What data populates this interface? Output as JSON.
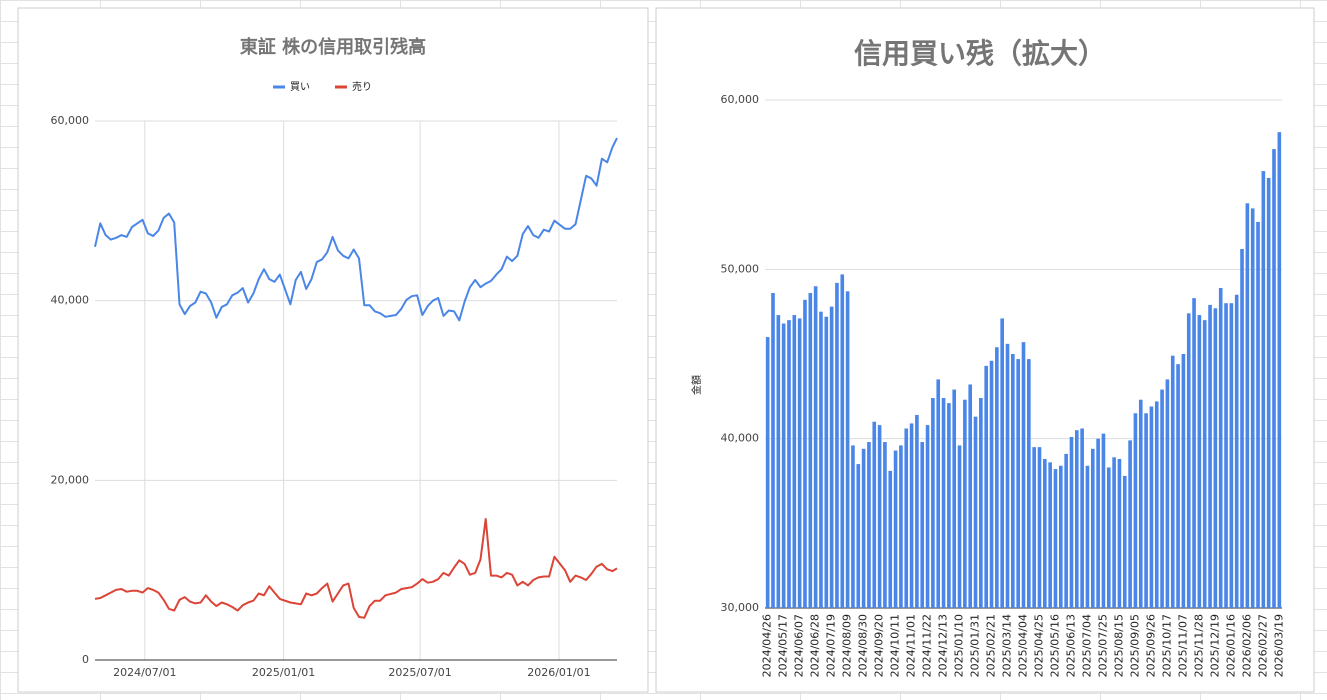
{
  "chart_data": [
    {
      "type": "line",
      "title": "東証 株の信用取引残高",
      "x": [
        "2024/04/26",
        "2024/05/03",
        "2024/05/10",
        "2024/05/17",
        "2024/05/24",
        "2024/05/31",
        "2024/06/07",
        "2024/06/14",
        "2024/06/21",
        "2024/06/28",
        "2024/07/05",
        "2024/07/12",
        "2024/07/19",
        "2024/07/26",
        "2024/08/02",
        "2024/08/09",
        "2024/08/16",
        "2024/08/23",
        "2024/08/30",
        "2024/09/06",
        "2024/09/13",
        "2024/09/20",
        "2024/09/27",
        "2024/10/04",
        "2024/10/11",
        "2024/10/18",
        "2024/10/25",
        "2024/11/01",
        "2024/11/08",
        "2024/11/15",
        "2024/11/22",
        "2024/11/29",
        "2024/12/06",
        "2024/12/13",
        "2024/12/20",
        "2024/12/27",
        "2025/01/10",
        "2025/01/17",
        "2025/01/24",
        "2025/01/31",
        "2025/02/07",
        "2025/02/14",
        "2025/02/21",
        "2025/02/28",
        "2025/03/07",
        "2025/03/14",
        "2025/03/21",
        "2025/03/28",
        "2025/04/04",
        "2025/04/11",
        "2025/04/18",
        "2025/04/25",
        "2025/05/02",
        "2025/05/09",
        "2025/05/16",
        "2025/05/30",
        "2025/06/06",
        "2025/06/13",
        "2025/06/20",
        "2025/06/27",
        "2025/07/04",
        "2025/07/11",
        "2025/07/18",
        "2025/07/25",
        "2025/08/01",
        "2025/08/08",
        "2025/08/15",
        "2025/08/22",
        "2025/08/29",
        "2025/09/05",
        "2025/09/12",
        "2025/09/19",
        "2025/09/26",
        "2025/10/03",
        "2025/10/10",
        "2025/10/17",
        "2025/10/24",
        "2025/10/31",
        "2025/11/07",
        "2025/11/14",
        "2025/11/21",
        "2025/11/28",
        "2025/12/05",
        "2025/12/12",
        "2025/12/19",
        "2025/12/26",
        "2026/01/09",
        "2026/01/16",
        "2026/01/23",
        "2026/01/30",
        "2026/02/06",
        "2026/02/13",
        "2026/02/20",
        "2026/02/27",
        "2026/03/06",
        "2026/03/13",
        "2026/03/19"
      ],
      "series": [
        {
          "name": "買い",
          "color": "#4a86e8",
          "values": [
            46000,
            48600,
            47300,
            46800,
            47000,
            47300,
            47100,
            48200,
            48600,
            49000,
            47500,
            47200,
            47800,
            49200,
            49700,
            48700,
            39600,
            38500,
            39400,
            39800,
            41000,
            40800,
            39800,
            38100,
            39300,
            39600,
            40600,
            40900,
            41400,
            39800,
            40800,
            42400,
            43500,
            42400,
            42100,
            42900,
            39600,
            42300,
            43200,
            41300,
            42400,
            44300,
            44600,
            45400,
            47100,
            45600,
            45000,
            44700,
            45700,
            44700,
            39500,
            39500,
            38800,
            38600,
            38200,
            38400,
            39100,
            40100,
            40500,
            40600,
            38400,
            39400,
            40000,
            40300,
            38300,
            38900,
            38800,
            37800,
            39900,
            41500,
            42300,
            41500,
            41900,
            42200,
            42900,
            43500,
            44900,
            44400,
            45000,
            47400,
            48300,
            47300,
            47000,
            47900,
            47700,
            48900,
            48000,
            48000,
            48500,
            51200,
            53900,
            53600,
            52800,
            55800,
            55400,
            57100,
            58100
          ]
        },
        {
          "name": "売り",
          "color": "#db4437",
          "values": [
            6800,
            6900,
            7200,
            7500,
            7800,
            7900,
            7600,
            7700,
            7700,
            7500,
            8000,
            7800,
            7500,
            6700,
            5700,
            5500,
            6700,
            7000,
            6500,
            6300,
            6400,
            7200,
            6500,
            6000,
            6400,
            6200,
            5900,
            5500,
            6100,
            6400,
            6600,
            7400,
            7200,
            8200,
            7500,
            6800,
            6400,
            6300,
            6200,
            7400,
            7200,
            7400,
            8000,
            8500,
            6500,
            7400,
            8300,
            8500,
            5800,
            4800,
            4700,
            6000,
            6600,
            6600,
            7200,
            7500,
            7900,
            8000,
            8100,
            8500,
            9000,
            8600,
            8700,
            9000,
            9700,
            9400,
            10300,
            11100,
            10700,
            9500,
            9700,
            11200,
            15700,
            9400,
            9400,
            9200,
            9700,
            9500,
            8300,
            8700,
            8300,
            8900,
            9200,
            9300,
            9300,
            11500,
            10000,
            8700,
            9400,
            9200,
            8900,
            9600,
            10400,
            10700,
            10100,
            9900,
            10200
          ]
        }
      ],
      "xlim": [
        "2024/04/26",
        "2026/03/19"
      ],
      "xticks": [
        "2024/07/01",
        "2025/01/01",
        "2025/07/01",
        "2026/01/01"
      ],
      "ylim": [
        0,
        60000
      ],
      "yticks": [
        0,
        {
          "value": 20000,
          "label": "20,000"
        },
        {
          "value": 40000,
          "label": "40,000"
        },
        {
          "value": 60000,
          "label": "60,000"
        }
      ],
      "grid": true,
      "legend": "top"
    },
    {
      "type": "bar",
      "title": "信用買い残（拡大）",
      "y_label": "金額",
      "color": "#4a86e8",
      "categories": [
        "2024/04/26",
        null,
        null,
        "2024/05/17",
        null,
        null,
        "2024/06/07",
        null,
        null,
        "2024/06/28",
        null,
        null,
        "2024/07/19",
        null,
        null,
        "2024/08/09",
        null,
        null,
        "2024/08/30",
        null,
        null,
        "2024/09/20",
        null,
        null,
        "2024/10/11",
        null,
        null,
        "2024/11/01",
        null,
        null,
        "2024/11/22",
        null,
        null,
        "2024/12/13",
        null,
        null,
        "2025/01/10",
        null,
        null,
        "2025/01/31",
        null,
        null,
        "2025/02/21",
        null,
        null,
        "2025/03/14",
        null,
        null,
        "2025/04/04",
        null,
        null,
        "2025/04/25",
        null,
        null,
        "2025/05/16",
        null,
        null,
        "2025/06/13",
        null,
        null,
        "2025/07/04",
        null,
        null,
        "2025/07/25",
        null,
        null,
        "2025/08/15",
        null,
        null,
        "2025/09/05",
        null,
        null,
        "2025/09/26",
        null,
        null,
        "2025/10/17",
        null,
        null,
        "2025/11/07",
        null,
        null,
        "2025/11/28",
        null,
        null,
        "2025/12/19",
        null,
        null,
        "2026/01/16",
        null,
        null,
        "2026/02/06",
        null,
        null,
        "2026/02/27",
        null,
        null,
        "2026/03/19"
      ],
      "values": [
        46000,
        48600,
        47300,
        46800,
        47000,
        47300,
        47100,
        48200,
        48600,
        49000,
        47500,
        47200,
        47800,
        49200,
        49700,
        48700,
        39600,
        38500,
        39400,
        39800,
        41000,
        40800,
        39800,
        38100,
        39300,
        39600,
        40600,
        40900,
        41400,
        39800,
        40800,
        42400,
        43500,
        42400,
        42100,
        42900,
        39600,
        42300,
        43200,
        41300,
        42400,
        44300,
        44600,
        45400,
        47100,
        45600,
        45000,
        44700,
        45700,
        44700,
        39500,
        39500,
        38800,
        38600,
        38200,
        38400,
        39100,
        40100,
        40500,
        40600,
        38400,
        39400,
        40000,
        40300,
        38300,
        38900,
        38800,
        37800,
        39900,
        41500,
        42300,
        41500,
        41900,
        42200,
        42900,
        43500,
        44900,
        44400,
        45000,
        47400,
        48300,
        47300,
        47000,
        47900,
        47700,
        48900,
        48000,
        48000,
        48500,
        51200,
        53900,
        53600,
        52800,
        55800,
        55400,
        57100,
        58100
      ],
      "ylim": [
        30000,
        60000
      ],
      "yticks": [
        {
          "value": 30000,
          "label": "30,000"
        },
        {
          "value": 40000,
          "label": "40,000"
        },
        {
          "value": 50000,
          "label": "50,000"
        },
        {
          "value": 60000,
          "label": "60,000"
        }
      ],
      "grid": true
    }
  ]
}
